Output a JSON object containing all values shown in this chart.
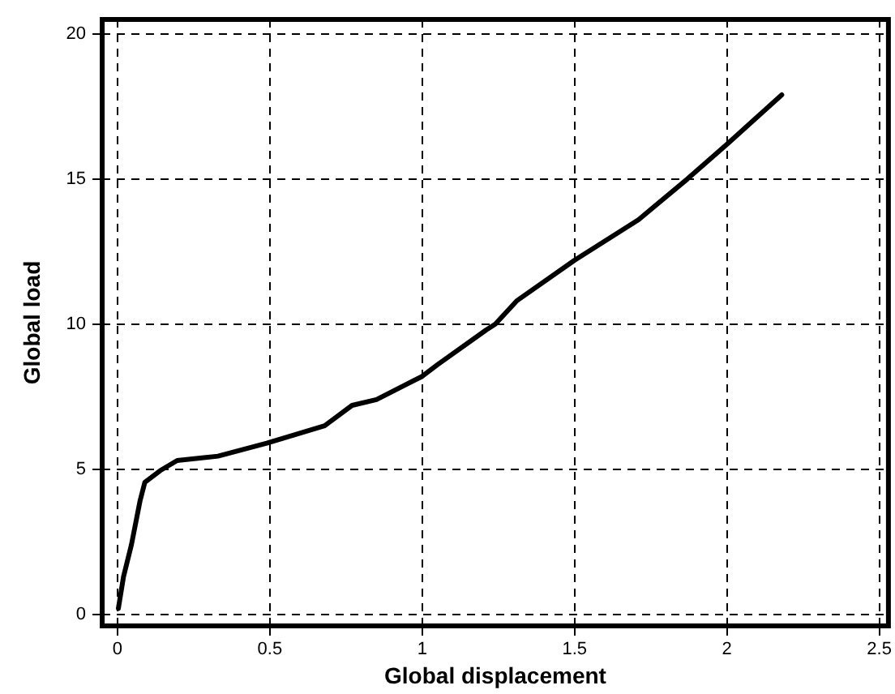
{
  "chart_data": {
    "type": "line",
    "xlabel": "Global displacement",
    "ylabel": "Global load",
    "x": [
      0.003,
      0.02,
      0.046,
      0.074,
      0.09,
      0.14,
      0.196,
      0.33,
      0.49,
      0.68,
      0.77,
      0.85,
      1.0,
      1.05,
      1.21,
      1.24,
      1.31,
      1.5,
      1.71,
      1.87,
      2.0,
      2.18
    ],
    "series": [
      {
        "color": "#000000",
        "values": [
          0.2,
          1.3,
          2.4,
          3.9,
          4.55,
          4.95,
          5.3,
          5.45,
          5.9,
          6.5,
          7.2,
          7.4,
          8.2,
          8.6,
          9.8,
          10.0,
          10.8,
          12.2,
          13.6,
          15.0,
          16.2,
          17.9
        ]
      }
    ],
    "xlim": [
      -0.05,
      2.53
    ],
    "ylim": [
      -0.4,
      20.5
    ],
    "xticks": [
      0,
      0.5,
      1,
      1.5,
      2,
      2.5
    ],
    "yticks": [
      0,
      5,
      10,
      15,
      20
    ],
    "grid": true,
    "legend": false,
    "marker": "none",
    "line_style": "solid"
  }
}
